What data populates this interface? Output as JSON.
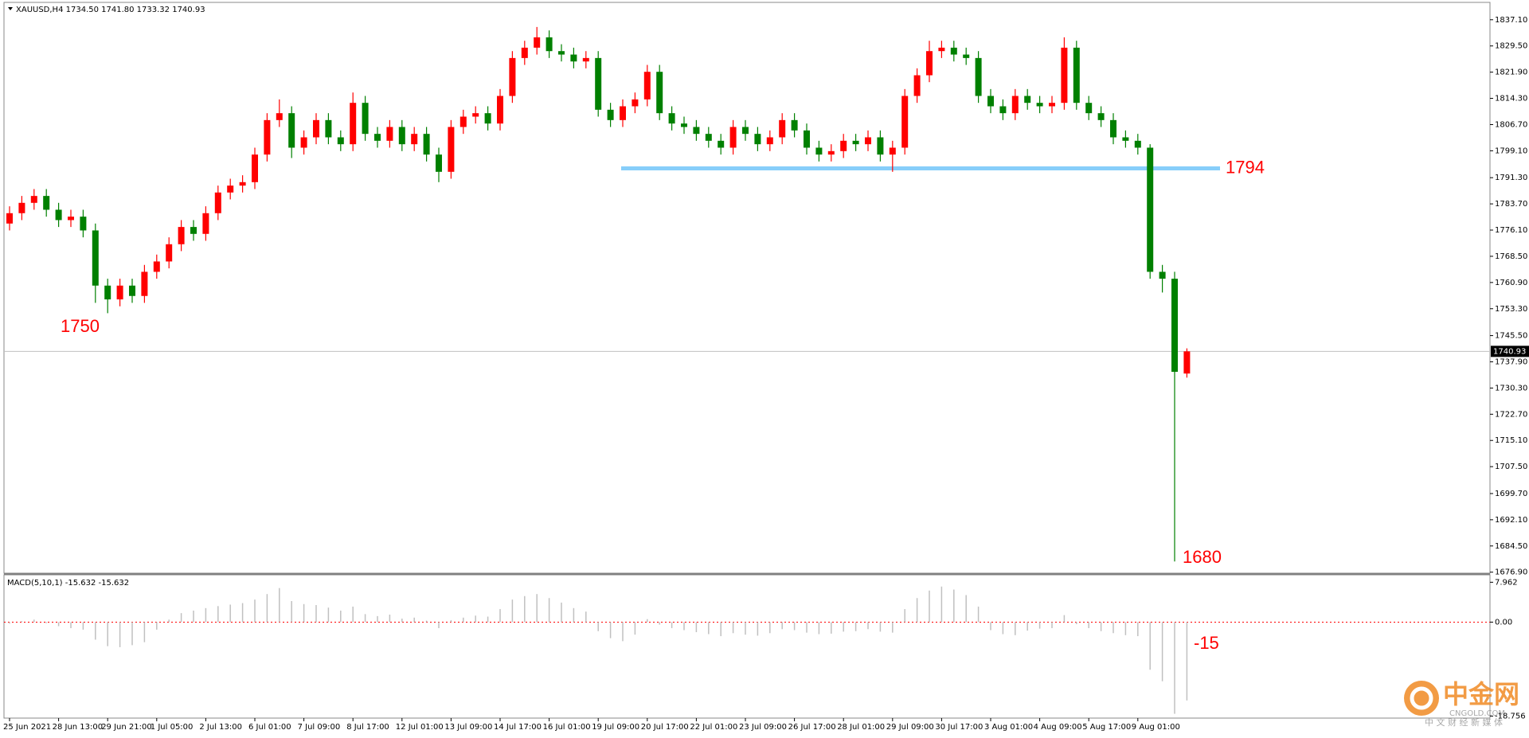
{
  "chart_data": {
    "type": "candlestick",
    "title": "XAUUSD,H4  1734.50 1741.80 1733.32 1740.93",
    "categories": [
      "25 Jun 2021",
      null,
      null,
      null,
      "28 Jun 13:00",
      null,
      null,
      null,
      "29 Jun 21:00",
      null,
      null,
      null,
      "1 Jul 05:00",
      null,
      null,
      null,
      "2 Jul 13:00",
      null,
      null,
      null,
      "6 Jul 01:00",
      null,
      null,
      null,
      "7 Jul 09:00",
      null,
      null,
      null,
      "8 Jul 17:00",
      null,
      null,
      null,
      "12 Jul 01:00",
      null,
      null,
      null,
      "13 Jul 09:00",
      null,
      null,
      null,
      "14 Jul 17:00",
      null,
      null,
      null,
      "16 Jul 01:00",
      null,
      null,
      null,
      "19 Jul 09:00",
      null,
      null,
      null,
      "20 Jul 17:00",
      null,
      null,
      null,
      "22 Jul 01:00",
      null,
      null,
      null,
      "23 Jul 09:00",
      null,
      null,
      null,
      "26 Jul 17:00",
      null,
      null,
      null,
      "28 Jul 01:00",
      null,
      null,
      null,
      "29 Jul 09:00",
      null,
      null,
      null,
      "30 Jul 17:00",
      null,
      null,
      null,
      "3 Aug 01:00",
      null,
      null,
      null,
      "4 Aug 09:00",
      null,
      null,
      null,
      "5 Aug 17:00",
      null,
      null,
      null,
      "9 Aug 01:00",
      null,
      null,
      null,
      null
    ],
    "open": [
      1778,
      1781,
      1784,
      1786,
      1782,
      1779,
      1780,
      1776,
      1760,
      1756,
      1760,
      1757,
      1764,
      1767,
      1772,
      1777,
      1775,
      1781,
      1787,
      1789,
      1790,
      1798,
      1808,
      1810,
      1800,
      1803,
      1808,
      1803,
      1801,
      1813,
      1804,
      1802,
      1806,
      1801,
      1804,
      1798,
      1793,
      1806,
      1809,
      1810,
      1807,
      1815,
      1826,
      1829,
      1832,
      1828,
      1827,
      1825,
      1826,
      1811,
      1808,
      1812,
      1814,
      1822,
      1810,
      1807,
      1806,
      1804,
      1802,
      1800,
      1806,
      1804,
      1801,
      1803,
      1808,
      1805,
      1800,
      1798,
      1799,
      1802,
      1801,
      1803,
      1798,
      1800,
      1815,
      1821,
      1828,
      1829,
      1827,
      1826,
      1815,
      1812,
      1810,
      1815,
      1813,
      1812,
      1813,
      1829,
      1813,
      1810,
      1808,
      1803,
      1802,
      1800,
      1764,
      1762,
      1734.5
    ],
    "high": [
      1783,
      1786,
      1788,
      1788,
      1784,
      1782,
      1782,
      1778,
      1762,
      1762,
      1762,
      1766,
      1769,
      1774,
      1779,
      1779,
      1783,
      1789,
      1791,
      1792,
      1800,
      1810,
      1814,
      1812,
      1805,
      1810,
      1810,
      1805,
      1816,
      1815,
      1806,
      1808,
      1808,
      1806,
      1806,
      1800,
      1808,
      1811,
      1812,
      1812,
      1817,
      1828,
      1831,
      1835,
      1834,
      1830,
      1829,
      1828,
      1828,
      1813,
      1814,
      1816,
      1824,
      1824,
      1812,
      1809,
      1808,
      1806,
      1804,
      1808,
      1808,
      1806,
      1805,
      1810,
      1810,
      1807,
      1802,
      1801,
      1804,
      1804,
      1805,
      1805,
      1802,
      1817,
      1823,
      1831,
      1831,
      1831,
      1829,
      1828,
      1817,
      1814,
      1817,
      1817,
      1815,
      1815,
      1832,
      1831,
      1815,
      1812,
      1810,
      1805,
      1804,
      1801,
      1766,
      1764,
      1741.8
    ],
    "low": [
      1776,
      1779,
      1782,
      1780,
      1777,
      1777,
      1774,
      1755,
      1752,
      1754,
      1755,
      1755,
      1762,
      1765,
      1770,
      1773,
      1773,
      1779,
      1785,
      1787,
      1788,
      1796,
      1806,
      1797,
      1798,
      1801,
      1801,
      1799,
      1799,
      1802,
      1800,
      1800,
      1799,
      1799,
      1796,
      1790,
      1791,
      1804,
      1807,
      1805,
      1805,
      1813,
      1824,
      1827,
      1826,
      1825,
      1823,
      1823,
      1809,
      1806,
      1806,
      1810,
      1812,
      1808,
      1805,
      1804,
      1802,
      1800,
      1798,
      1798,
      1802,
      1799,
      1799,
      1801,
      1803,
      1798,
      1796,
      1796,
      1797,
      1799,
      1799,
      1796,
      1793,
      1798,
      1813,
      1819,
      1826,
      1825,
      1824,
      1813,
      1810,
      1808,
      1808,
      1811,
      1810,
      1810,
      1811,
      1811,
      1808,
      1806,
      1801,
      1800,
      1798,
      1762,
      1758,
      1680,
      1733.32
    ],
    "close": [
      1781,
      1784,
      1786,
      1782,
      1779,
      1780,
      1776,
      1760,
      1756,
      1760,
      1757,
      1764,
      1767,
      1772,
      1777,
      1775,
      1781,
      1787,
      1789,
      1790,
      1798,
      1808,
      1810,
      1800,
      1803,
      1808,
      1803,
      1801,
      1813,
      1804,
      1802,
      1806,
      1801,
      1804,
      1798,
      1793,
      1806,
      1809,
      1810,
      1807,
      1815,
      1826,
      1829,
      1832,
      1828,
      1827,
      1825,
      1826,
      1811,
      1808,
      1812,
      1814,
      1822,
      1810,
      1807,
      1806,
      1804,
      1802,
      1800,
      1806,
      1804,
      1801,
      1803,
      1808,
      1805,
      1800,
      1798,
      1799,
      1802,
      1801,
      1803,
      1798,
      1800,
      1815,
      1821,
      1828,
      1829,
      1827,
      1826,
      1815,
      1812,
      1810,
      1815,
      1813,
      1812,
      1813,
      1829,
      1813,
      1810,
      1808,
      1803,
      1802,
      1800,
      1764,
      1762,
      1735,
      1740.93
    ],
    "up_color": "#ff0000",
    "down_color": "#008000",
    "ylim": [
      1676.6,
      1841.9
    ],
    "yticks": [
      {
        "value": 1837.1,
        "label": "1837.10"
      },
      {
        "value": 1829.5,
        "label": "1829.50"
      },
      {
        "value": 1821.9,
        "label": "1821.90"
      },
      {
        "value": 1814.3,
        "label": "1814.30"
      },
      {
        "value": 1806.7,
        "label": "1806.70"
      },
      {
        "value": 1799.1,
        "label": "1799.10"
      },
      {
        "value": 1791.3,
        "label": "1791.30"
      },
      {
        "value": 1783.7,
        "label": "1783.70"
      },
      {
        "value": 1776.1,
        "label": "1776.10"
      },
      {
        "value": 1768.5,
        "label": "1768.50"
      },
      {
        "value": 1760.9,
        "label": "1760.90"
      },
      {
        "value": 1753.3,
        "label": "1753.30"
      },
      {
        "value": 1745.5,
        "label": "1745.50"
      },
      {
        "value": 1737.9,
        "label": "1737.90"
      },
      {
        "value": 1730.3,
        "label": "1730.30"
      },
      {
        "value": 1722.7,
        "label": "1722.70"
      },
      {
        "value": 1715.1,
        "label": "1715.10"
      },
      {
        "value": 1707.5,
        "label": "1707.50"
      },
      {
        "value": 1699.7,
        "label": "1699.70"
      },
      {
        "value": 1692.1,
        "label": "1692.10"
      },
      {
        "value": 1684.5,
        "label": "1684.50"
      },
      {
        "value": 1676.9,
        "label": "1676.90"
      }
    ],
    "current_price": 1740.93,
    "level_line": {
      "value": 1794,
      "color": "#87cefa"
    },
    "annotations": [
      "1750",
      "1680",
      "-15"
    ],
    "macd": {
      "type": "bar",
      "name": "MACD(5,10,1) -15.632 -15.632",
      "color": "#c0c0c0",
      "zero_color": "#ff0000",
      "values": [
        -0.3,
        0.2,
        0.5,
        -0.2,
        -0.8,
        -1.2,
        -1.5,
        -3.5,
        -4.8,
        -5,
        -4.6,
        -4,
        -1.5,
        0.5,
        1.8,
        2.3,
        2.8,
        3.2,
        3.5,
        3.8,
        4.5,
        5.6,
        6.8,
        4.2,
        3.6,
        3.4,
        2.9,
        2.3,
        3.1,
        1.6,
        1.2,
        1.5,
        0.7,
        0.9,
        0.3,
        -1.2,
        0.4,
        0.9,
        1.3,
        1.1,
        2.6,
        4.5,
        5.2,
        5.6,
        4.8,
        3.9,
        2.8,
        2.1,
        -1.8,
        -3.2,
        -3.8,
        -2.5,
        0.6,
        -0.5,
        -1.2,
        -1.6,
        -2,
        -2.4,
        -2.8,
        -2.2,
        -2.5,
        -2.7,
        -2.2,
        -1.4,
        -1.6,
        -2.1,
        -2.4,
        -2.3,
        -1.9,
        -1.8,
        -1.4,
        -1.9,
        -2.1,
        2.6,
        4.8,
        6.3,
        7.1,
        6.5,
        5.4,
        3.1,
        -1.6,
        -2.4,
        -2.6,
        -1.7,
        -1.3,
        -1.2,
        1.4,
        -0.4,
        -1.2,
        -1.8,
        -2.2,
        -2.6,
        -2.8,
        -9.5,
        -11.8,
        -18.3,
        -15.632
      ],
      "ylim": [
        -18.84,
        9.13
      ],
      "yticks": [
        7.962,
        {
          "value": 0,
          "label": "0.00"
        },
        -18.756
      ]
    },
    "watermark": {
      "name": "中金网",
      "site": "CNGOLD.COM",
      "slogan": "中 文 财 经 新 媒 体"
    }
  }
}
